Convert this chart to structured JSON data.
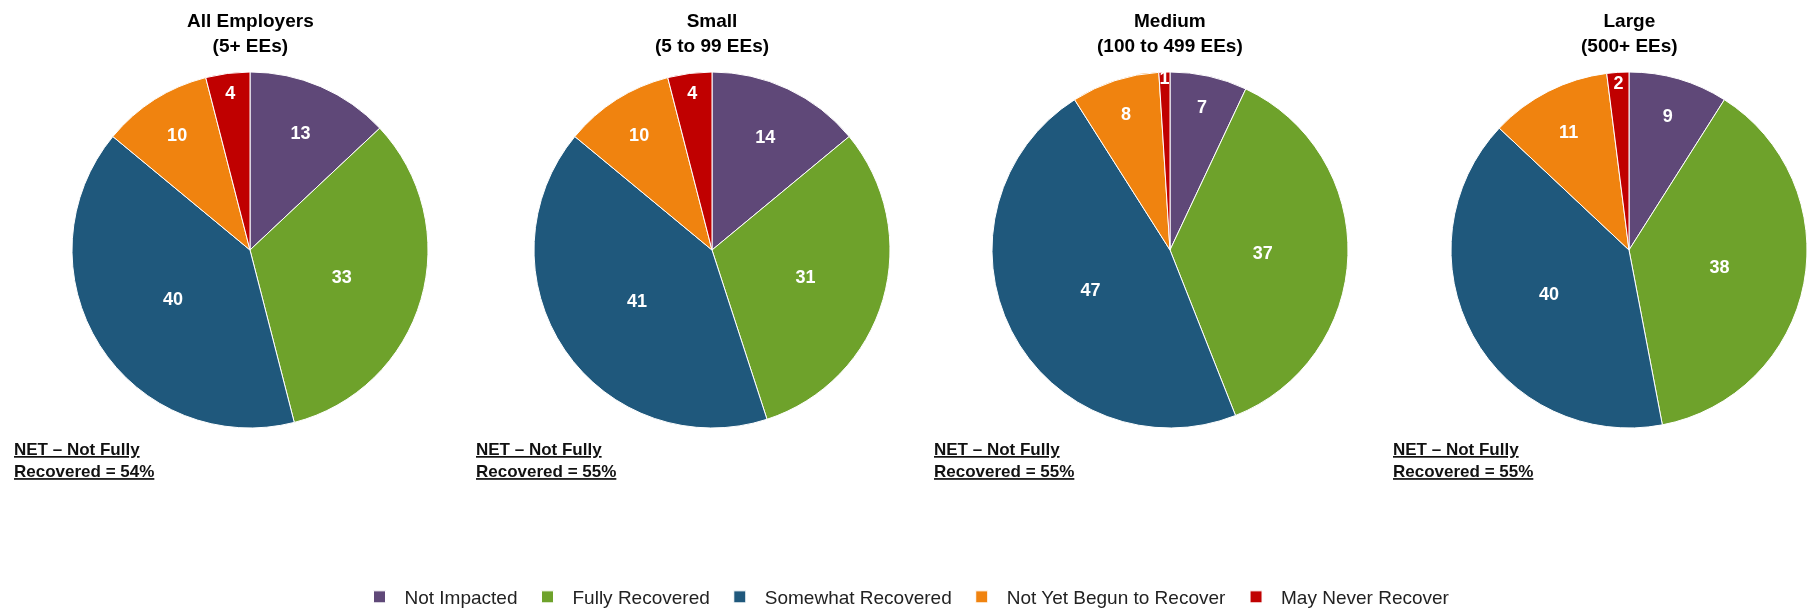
{
  "chart_data": [
    {
      "type": "pie",
      "title": "All Employers",
      "subtitle": "(5+ EEs)",
      "categories": [
        "Not Impacted",
        "Fully Recovered",
        "Somewhat Recovered",
        "Not Yet Begun to Recover",
        "May Never Recover"
      ],
      "values": [
        13,
        33,
        40,
        10,
        4
      ],
      "colors": [
        "#5f4878",
        "#6ea22b",
        "#1f587c",
        "#f0830f",
        "#c00000"
      ],
      "data_labels": true,
      "legend": "bottom",
      "annotations": [
        "NET – Not Fully Recovered = 54%"
      ]
    },
    {
      "type": "pie",
      "title": "Small",
      "subtitle": "(5 to 99 EEs)",
      "categories": [
        null,
        null,
        null,
        null,
        null
      ],
      "values": [
        14,
        31,
        41,
        10,
        4
      ],
      "colors": [
        "#5f4878",
        "#6ea22b",
        "#1f587c",
        "#f0830f",
        "#c00000"
      ],
      "data_labels": true,
      "annotations": [
        "NET – Not Fully Recovered = 55%"
      ]
    },
    {
      "type": "pie",
      "title": "Medium",
      "subtitle": "(100 to 499 EEs)",
      "categories": [
        null,
        null,
        null,
        null,
        null
      ],
      "values": [
        7,
        37,
        47,
        8,
        1
      ],
      "colors": [
        "#5f4878",
        "#6ea22b",
        "#1f587c",
        "#f0830f",
        "#c00000"
      ],
      "data_labels": true,
      "annotations": [
        "NET – Not Fully Recovered = 55%"
      ]
    },
    {
      "type": "pie",
      "title": "Large",
      "subtitle": "(500+ EEs)",
      "categories": [
        null,
        null,
        null,
        null,
        null
      ],
      "values": [
        9,
        38,
        40,
        11,
        2
      ],
      "colors": [
        "#5f4878",
        "#6ea22b",
        "#1f587c",
        "#f0830f",
        "#c00000"
      ],
      "data_labels": true,
      "annotations": [
        "NET – Not Fully Recovered = 55%"
      ]
    }
  ]
}
